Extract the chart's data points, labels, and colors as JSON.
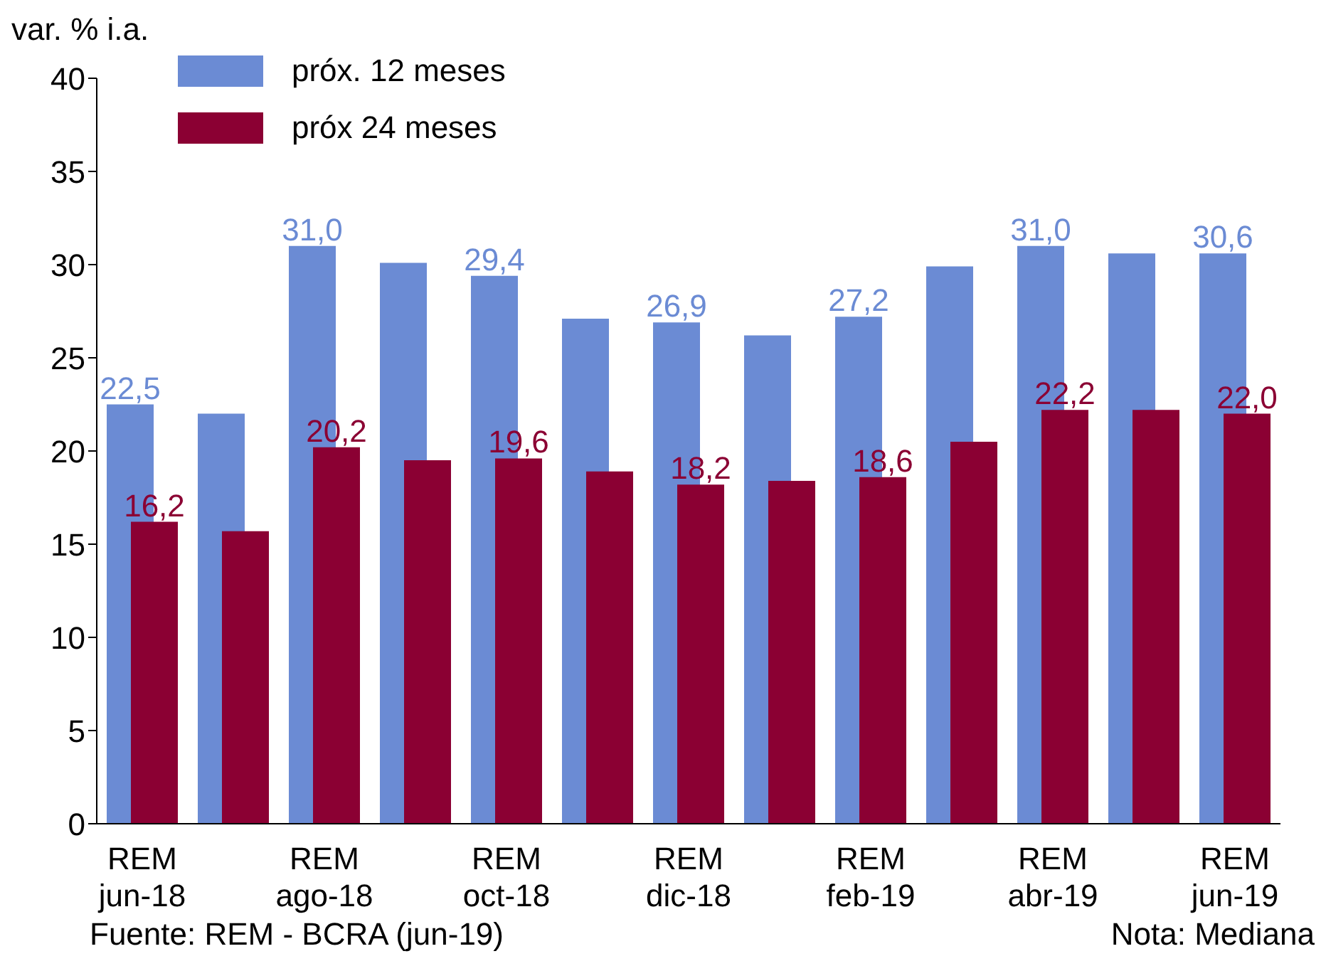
{
  "chart_data": {
    "type": "bar",
    "ylabel": "var. % i.a.",
    "categories": [
      "REM jun-18",
      null,
      "REM ago-18",
      null,
      "REM oct-18",
      null,
      "REM dic-18",
      null,
      "REM feb-19",
      null,
      "REM abr-19",
      null,
      "REM jun-19"
    ],
    "series": [
      {
        "name": "próx. 12 meses",
        "color": "#6b8bd4",
        "values": [
          22.5,
          22.0,
          31.0,
          30.1,
          29.4,
          27.1,
          26.9,
          26.2,
          27.2,
          29.9,
          31.0,
          30.6,
          30.6
        ],
        "value_labels": [
          "22,5",
          null,
          "31,0",
          null,
          "29,4",
          null,
          "26,9",
          null,
          "27,2",
          null,
          "31,0",
          null,
          "30,6"
        ]
      },
      {
        "name": "próx 24 meses",
        "color": "#8b0033",
        "values": [
          16.2,
          15.7,
          20.2,
          19.5,
          19.6,
          18.9,
          18.2,
          18.4,
          18.6,
          20.5,
          22.2,
          22.2,
          22.0
        ],
        "value_labels": [
          "16,2",
          null,
          "20,2",
          null,
          "19,6",
          null,
          "18,2",
          null,
          "18,6",
          null,
          "22,2",
          null,
          "22,0"
        ]
      }
    ],
    "ylim": [
      0,
      40
    ],
    "yticks": [
      0,
      5,
      10,
      15,
      20,
      25,
      30,
      35,
      40
    ],
    "grid": false,
    "legend": "top left",
    "annotations": [
      "Fuente: REM - BCRA (jun-19)",
      "Nota: Mediana"
    ]
  }
}
